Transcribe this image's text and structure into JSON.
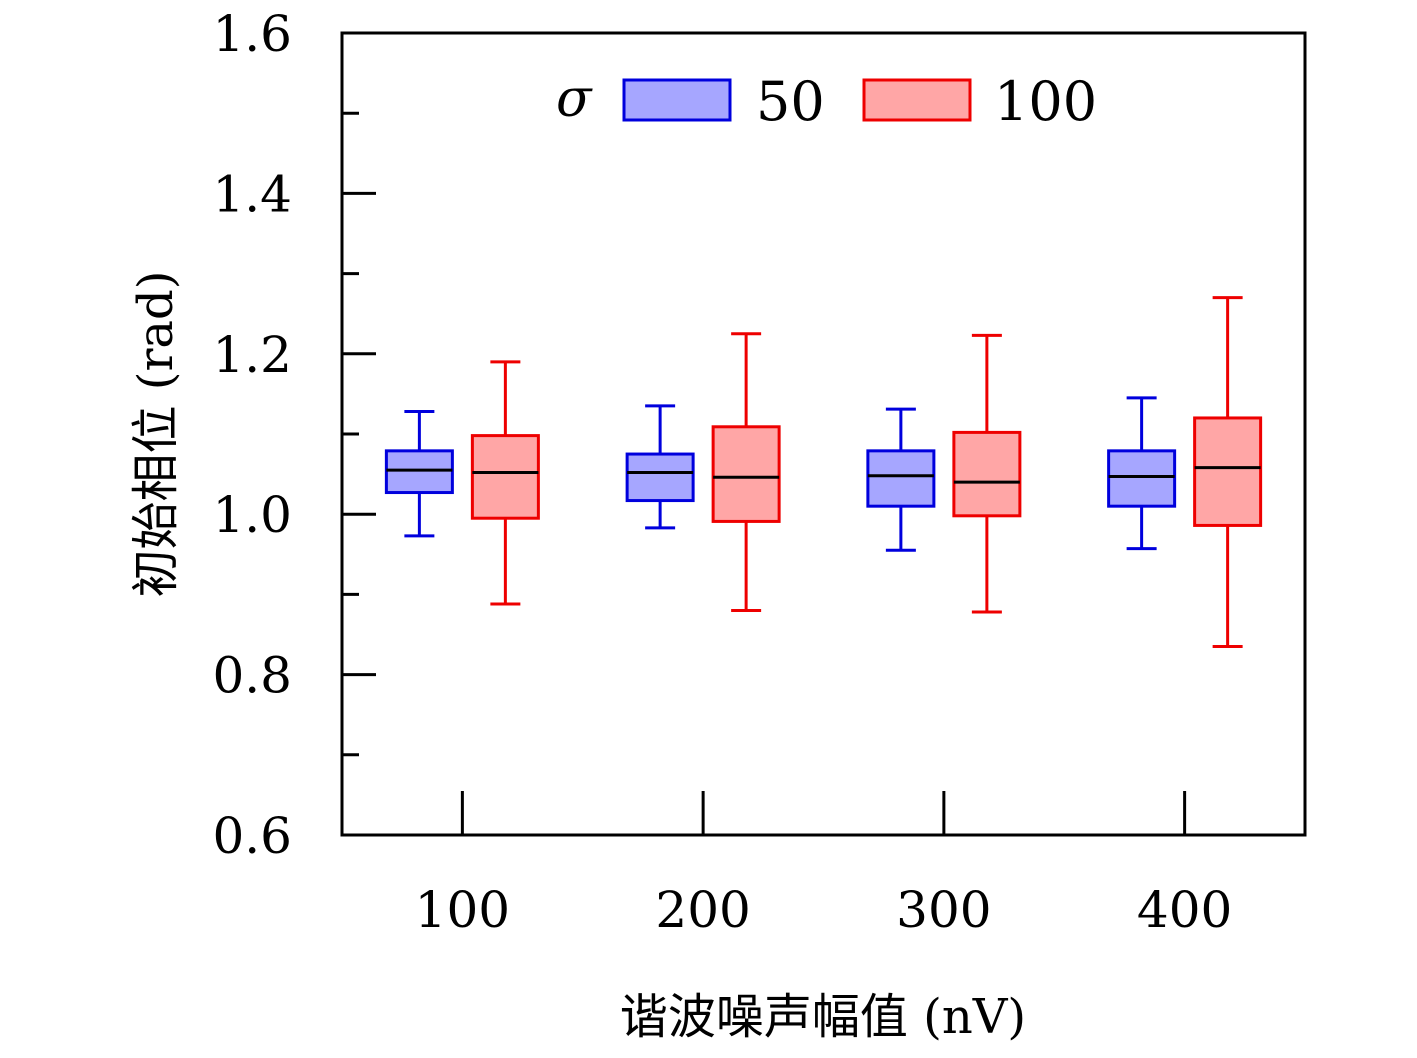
{
  "chart_data": {
    "type": "box",
    "xlabel": "谐波噪声幅值 (nV)",
    "ylabel": "初始相位 (rad)",
    "ylim": [
      0.6,
      1.6
    ],
    "yticks": [
      "0.6",
      "0.8",
      "1.0",
      "1.2",
      "1.4",
      "1.6"
    ],
    "yminor": [
      0.7,
      0.9,
      1.1,
      1.3,
      1.5
    ],
    "categories": [
      "100",
      "200",
      "300",
      "400"
    ],
    "legend": {
      "title": "σ",
      "position": "top-center"
    },
    "grid": false,
    "series": [
      {
        "name": "50",
        "fill": "#a6a6ff",
        "stroke": "#0000dd",
        "boxes": [
          {
            "min": 0.973,
            "q1": 1.027,
            "median": 1.055,
            "q3": 1.079,
            "max": 1.128
          },
          {
            "min": 0.983,
            "q1": 1.017,
            "median": 1.052,
            "q3": 1.075,
            "max": 1.135
          },
          {
            "min": 0.955,
            "q1": 1.01,
            "median": 1.048,
            "q3": 1.079,
            "max": 1.131
          },
          {
            "min": 0.957,
            "q1": 1.01,
            "median": 1.047,
            "q3": 1.079,
            "max": 1.145
          }
        ]
      },
      {
        "name": "100",
        "fill": "#ffa6a6",
        "stroke": "#ee0000",
        "boxes": [
          {
            "min": 0.888,
            "q1": 0.995,
            "median": 1.052,
            "q3": 1.098,
            "max": 1.19
          },
          {
            "min": 0.88,
            "q1": 0.991,
            "median": 1.046,
            "q3": 1.109,
            "max": 1.225
          },
          {
            "min": 0.878,
            "q1": 0.998,
            "median": 1.04,
            "q3": 1.102,
            "max": 1.223
          },
          {
            "min": 0.835,
            "q1": 0.986,
            "median": 1.058,
            "q3": 1.12,
            "max": 1.27
          }
        ]
      }
    ]
  }
}
